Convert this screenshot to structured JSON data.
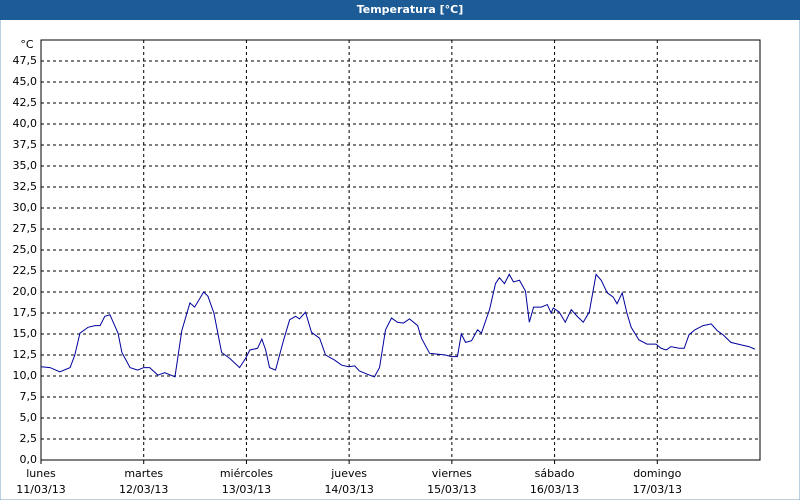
{
  "chart_data": {
    "type": "line",
    "title": "Temperatura [°C]",
    "y_label": "°C",
    "xlim": [
      0,
      168
    ],
    "ylim": [
      0,
      50
    ],
    "grid": true,
    "xticks": [
      {
        "value": 0,
        "label": "lunes 11/03/13"
      },
      {
        "value": 24,
        "label": "martes 12/03/13"
      },
      {
        "value": 48,
        "label": "miércoles 13/03/13"
      },
      {
        "value": 72,
        "label": "jueves 14/03/13"
      },
      {
        "value": 96,
        "label": "viernes 15/03/13"
      },
      {
        "value": 120,
        "label": "sábado 16/03/13"
      },
      {
        "value": 144,
        "label": "domingo 17/03/13"
      }
    ],
    "yticks": [
      {
        "value": 0,
        "label": "0,0"
      },
      {
        "value": 2.5,
        "label": "2,5"
      },
      {
        "value": 5,
        "label": "5,0"
      },
      {
        "value": 7.5,
        "label": "7,5"
      },
      {
        "value": 10,
        "label": "10,0"
      },
      {
        "value": 12.5,
        "label": "12,5"
      },
      {
        "value": 15,
        "label": "15,0"
      },
      {
        "value": 17.5,
        "label": "17,5"
      },
      {
        "value": 20,
        "label": "20,0"
      },
      {
        "value": 22.5,
        "label": "22,5"
      },
      {
        "value": 25,
        "label": "25,0"
      },
      {
        "value": 27.5,
        "label": "27,5"
      },
      {
        "value": 30,
        "label": "30,0"
      },
      {
        "value": 32.5,
        "label": "32,5"
      },
      {
        "value": 35,
        "label": "35,0"
      },
      {
        "value": 37.5,
        "label": "37,5"
      },
      {
        "value": 40,
        "label": "40,0"
      },
      {
        "value": 42.5,
        "label": "42,5"
      },
      {
        "value": 45,
        "label": "45,0"
      },
      {
        "value": 47.5,
        "label": "47,5"
      }
    ],
    "x": [
      0,
      2.1,
      4.4,
      6.8,
      7.9,
      9.1,
      11,
      12.6,
      13.8,
      14.9,
      16.1,
      18,
      18.9,
      20.8,
      22.6,
      24,
      25.4,
      27.3,
      28.9,
      31.3,
      32.9,
      34.8,
      35.9,
      38,
      39,
      40.4,
      42.2,
      44.1,
      46.4,
      47.8,
      48.8,
      50.6,
      51.6,
      52.5,
      53.4,
      54.8,
      56.7,
      58.1,
      59.5,
      60.4,
      61.8,
      63.2,
      65.1,
      66.5,
      68.6,
      70.2,
      71.9,
      73.3,
      74.4,
      76.3,
      77.9,
      79.1,
      80.5,
      81.9,
      83.3,
      84.7,
      86.1,
      88,
      88.9,
      90.8,
      92.6,
      94.5,
      95.9,
      97.3,
      98.2,
      99.2,
      100.6,
      102,
      102.9,
      104.8,
      106.2,
      107.1,
      108.3,
      109.4,
      110.4,
      111.8,
      113.2,
      114.1,
      115.1,
      116.9,
      118.3,
      119.2,
      119.7,
      121.1,
      122.5,
      123.9,
      125.3,
      126.7,
      128.1,
      129.7,
      130.9,
      132.3,
      133.7,
      134.6,
      135.8,
      136.9,
      137.9,
      139.7,
      141.6,
      143.7,
      144.9,
      146.1,
      147.2,
      149.1,
      150.3,
      151.4,
      152.8,
      154.7,
      156.6,
      158,
      159.4,
      161.2,
      163.6,
      165.4,
      166.8
    ],
    "series": [
      {
        "name": "Temperatura",
        "color": "#00009c",
        "values": [
          11.1,
          11,
          10.5,
          11,
          12.5,
          15.1,
          15.8,
          16,
          16,
          17.1,
          17.3,
          15.1,
          12.8,
          11,
          10.7,
          11,
          11,
          10.1,
          10.4,
          9.9,
          15.4,
          18.7,
          18.2,
          20,
          19.5,
          17.5,
          12.8,
          12.1,
          11,
          12.1,
          13.1,
          13.3,
          14.4,
          13.1,
          11,
          10.7,
          14.3,
          16.7,
          17.1,
          16.8,
          17.6,
          15.2,
          14.5,
          12.5,
          11.9,
          11.3,
          11.1,
          11.2,
          10.6,
          10.2,
          9.9,
          11,
          15.5,
          16.9,
          16.4,
          16.3,
          16.8,
          16,
          14.5,
          12.7,
          12.6,
          12.5,
          12.3,
          12.3,
          15,
          14,
          14.2,
          15.5,
          15.1,
          17.9,
          21,
          21.7,
          21,
          22.1,
          21.2,
          21.4,
          20.1,
          16.4,
          18.2,
          18.2,
          18.5,
          17.5,
          18.1,
          17.6,
          16.4,
          17.9,
          17.1,
          16.4,
          17.6,
          22.1,
          21.4,
          19.9,
          19.4,
          18.6,
          19.9,
          17.5,
          15.8,
          14.3,
          13.8,
          13.8,
          13.3,
          13.1,
          13.5,
          13.3,
          13.3,
          14.9,
          15.5,
          16,
          16.2,
          15.4,
          14.9,
          14,
          13.7,
          13.5,
          13.2
        ]
      }
    ]
  }
}
